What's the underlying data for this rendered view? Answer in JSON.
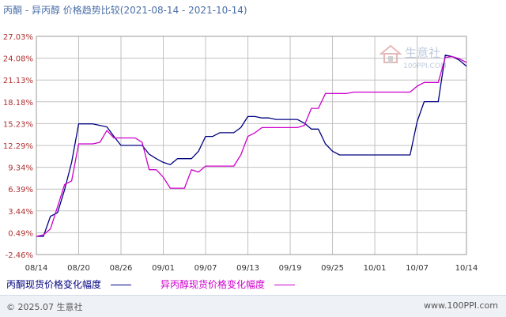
{
  "title": "丙酮 - 异丙醇 价格趋势比较",
  "date_range": "(2021-08-14 - 2021-10-14)",
  "footer": {
    "copyright": "© 2025.07 生意社",
    "site": "www.100PPI.com"
  },
  "watermark": {
    "brand": "生意社",
    "url": "100PPI.COM"
  },
  "colors": {
    "series1": "#000080",
    "series2": "#cc00cc",
    "grid": "#c0c0c0"
  },
  "chart_data": {
    "type": "line",
    "x_ticks": [
      "08/14",
      "08/20",
      "08/26",
      "09/01",
      "09/07",
      "09/13",
      "09/19",
      "09/25",
      "10/01",
      "10/07",
      "10/14"
    ],
    "y_ticks": [
      "27.03%",
      "24.08%",
      "21.13%",
      "18.18%",
      "15.23%",
      "12.29%",
      "9.34%",
      "6.39%",
      "3.44%",
      "0.49%",
      "-2.46%"
    ],
    "ylim": [
      -2.46,
      27.03
    ],
    "grid": true,
    "series": [
      {
        "name": "丙酮现货价格变化幅度",
        "points": [
          [
            "2021-08-14",
            0.0
          ],
          [
            "2021-08-15",
            0.0
          ],
          [
            "2021-08-16",
            2.7
          ],
          [
            "2021-08-17",
            3.2
          ],
          [
            "2021-08-18",
            6.3
          ],
          [
            "2021-08-19",
            10.0
          ],
          [
            "2021-08-20",
            15.2
          ],
          [
            "2021-08-21",
            15.2
          ],
          [
            "2021-08-22",
            15.2
          ],
          [
            "2021-08-23",
            15.0
          ],
          [
            "2021-08-24",
            14.8
          ],
          [
            "2021-08-25",
            13.5
          ],
          [
            "2021-08-26",
            12.3
          ],
          [
            "2021-08-27",
            12.3
          ],
          [
            "2021-08-28",
            12.3
          ],
          [
            "2021-08-29",
            12.3
          ],
          [
            "2021-08-30",
            11.1
          ],
          [
            "2021-08-31",
            10.5
          ],
          [
            "2021-09-01",
            10.0
          ],
          [
            "2021-09-02",
            9.7
          ],
          [
            "2021-09-03",
            10.5
          ],
          [
            "2021-09-04",
            10.5
          ],
          [
            "2021-09-05",
            10.5
          ],
          [
            "2021-09-06",
            11.5
          ],
          [
            "2021-09-07",
            13.5
          ],
          [
            "2021-09-08",
            13.5
          ],
          [
            "2021-09-09",
            14.0
          ],
          [
            "2021-09-10",
            14.0
          ],
          [
            "2021-09-11",
            14.0
          ],
          [
            "2021-09-12",
            14.7
          ],
          [
            "2021-09-13",
            16.2
          ],
          [
            "2021-09-14",
            16.2
          ],
          [
            "2021-09-15",
            16.0
          ],
          [
            "2021-09-16",
            16.0
          ],
          [
            "2021-09-17",
            15.8
          ],
          [
            "2021-09-18",
            15.8
          ],
          [
            "2021-09-19",
            15.8
          ],
          [
            "2021-09-20",
            15.8
          ],
          [
            "2021-09-21",
            15.3
          ],
          [
            "2021-09-22",
            14.5
          ],
          [
            "2021-09-23",
            14.5
          ],
          [
            "2021-09-24",
            12.5
          ],
          [
            "2021-09-25",
            11.5
          ],
          [
            "2021-09-26",
            11.0
          ],
          [
            "2021-09-27",
            11.0
          ],
          [
            "2021-09-28",
            11.0
          ],
          [
            "2021-09-29",
            11.0
          ],
          [
            "2021-09-30",
            11.0
          ],
          [
            "2021-10-01",
            11.0
          ],
          [
            "2021-10-02",
            11.0
          ],
          [
            "2021-10-03",
            11.0
          ],
          [
            "2021-10-04",
            11.0
          ],
          [
            "2021-10-05",
            11.0
          ],
          [
            "2021-10-06",
            11.0
          ],
          [
            "2021-10-07",
            15.5
          ],
          [
            "2021-10-08",
            18.2
          ],
          [
            "2021-10-09",
            18.2
          ],
          [
            "2021-10-10",
            18.2
          ],
          [
            "2021-10-11",
            24.5
          ],
          [
            "2021-10-12",
            24.3
          ],
          [
            "2021-10-13",
            23.8
          ],
          [
            "2021-10-14",
            23.0
          ]
        ]
      },
      {
        "name": "异丙醇现货价格变化幅度",
        "points": [
          [
            "2021-08-14",
            0.0
          ],
          [
            "2021-08-15",
            0.2
          ],
          [
            "2021-08-16",
            1.0
          ],
          [
            "2021-08-17",
            4.0
          ],
          [
            "2021-08-18",
            7.0
          ],
          [
            "2021-08-19",
            7.5
          ],
          [
            "2021-08-20",
            12.5
          ],
          [
            "2021-08-21",
            12.5
          ],
          [
            "2021-08-22",
            12.5
          ],
          [
            "2021-08-23",
            12.7
          ],
          [
            "2021-08-24",
            14.3
          ],
          [
            "2021-08-25",
            13.3
          ],
          [
            "2021-08-26",
            13.3
          ],
          [
            "2021-08-27",
            13.3
          ],
          [
            "2021-08-28",
            13.3
          ],
          [
            "2021-08-29",
            12.7
          ],
          [
            "2021-08-30",
            9.0
          ],
          [
            "2021-08-31",
            9.0
          ],
          [
            "2021-09-01",
            8.0
          ],
          [
            "2021-09-02",
            6.5
          ],
          [
            "2021-09-03",
            6.5
          ],
          [
            "2021-09-04",
            6.5
          ],
          [
            "2021-09-05",
            9.0
          ],
          [
            "2021-09-06",
            8.7
          ],
          [
            "2021-09-07",
            9.5
          ],
          [
            "2021-09-08",
            9.5
          ],
          [
            "2021-09-09",
            9.5
          ],
          [
            "2021-09-10",
            9.5
          ],
          [
            "2021-09-11",
            9.5
          ],
          [
            "2021-09-12",
            11.0
          ],
          [
            "2021-09-13",
            13.5
          ],
          [
            "2021-09-14",
            14.0
          ],
          [
            "2021-09-15",
            14.7
          ],
          [
            "2021-09-16",
            14.7
          ],
          [
            "2021-09-17",
            14.7
          ],
          [
            "2021-09-18",
            14.7
          ],
          [
            "2021-09-19",
            14.7
          ],
          [
            "2021-09-20",
            14.7
          ],
          [
            "2021-09-21",
            15.0
          ],
          [
            "2021-09-22",
            17.3
          ],
          [
            "2021-09-23",
            17.3
          ],
          [
            "2021-09-24",
            19.3
          ],
          [
            "2021-09-25",
            19.3
          ],
          [
            "2021-09-26",
            19.3
          ],
          [
            "2021-09-27",
            19.3
          ],
          [
            "2021-09-28",
            19.5
          ],
          [
            "2021-09-29",
            19.5
          ],
          [
            "2021-09-30",
            19.5
          ],
          [
            "2021-10-01",
            19.5
          ],
          [
            "2021-10-02",
            19.5
          ],
          [
            "2021-10-03",
            19.5
          ],
          [
            "2021-10-04",
            19.5
          ],
          [
            "2021-10-05",
            19.5
          ],
          [
            "2021-10-06",
            19.5
          ],
          [
            "2021-10-07",
            20.3
          ],
          [
            "2021-10-08",
            20.8
          ],
          [
            "2021-10-09",
            20.8
          ],
          [
            "2021-10-10",
            20.8
          ],
          [
            "2021-10-11",
            24.2
          ],
          [
            "2021-10-12",
            24.3
          ],
          [
            "2021-10-13",
            24.0
          ],
          [
            "2021-10-14",
            23.5
          ]
        ]
      }
    ]
  }
}
